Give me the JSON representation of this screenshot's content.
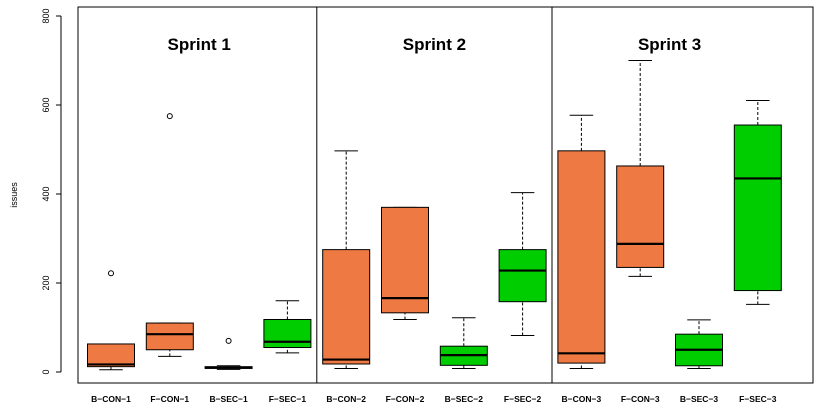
{
  "chart_data": {
    "type": "boxplot",
    "ylabel": "issues",
    "ylim": [
      0,
      800
    ],
    "yticks": [
      0,
      200,
      400,
      600,
      800
    ],
    "grid": false,
    "legend": "none",
    "colors": {
      "CON": "#EE7942",
      "SEC": "#00CD00"
    },
    "panels": [
      {
        "title": "Sprint 1",
        "boxes": [
          {
            "label": "B−CON−1",
            "group": "CON",
            "min": 5,
            "q1": 12,
            "median": 17,
            "q3": 63,
            "max": 63,
            "outliers": [
              222
            ]
          },
          {
            "label": "F−CON−1",
            "group": "CON",
            "min": 35,
            "q1": 50,
            "median": 85,
            "q3": 110,
            "max": 110,
            "outliers": [
              575
            ]
          },
          {
            "label": "B−SEC−1",
            "group": "SEC",
            "min": 6,
            "q1": 8,
            "median": 10,
            "q3": 12,
            "max": 14,
            "outliers": [
              70
            ]
          },
          {
            "label": "F−SEC−1",
            "group": "SEC",
            "min": 43,
            "q1": 55,
            "median": 68,
            "q3": 118,
            "max": 160,
            "outliers": []
          }
        ]
      },
      {
        "title": "Sprint 2",
        "boxes": [
          {
            "label": "B−CON−2",
            "group": "CON",
            "min": 8,
            "q1": 18,
            "median": 28,
            "q3": 275,
            "max": 497,
            "outliers": []
          },
          {
            "label": "F−CON−2",
            "group": "CON",
            "min": 118,
            "q1": 133,
            "median": 166,
            "q3": 370,
            "max": 370,
            "outliers": []
          },
          {
            "label": "B−SEC−2",
            "group": "SEC",
            "min": 8,
            "q1": 15,
            "median": 38,
            "q3": 58,
            "max": 122,
            "outliers": []
          },
          {
            "label": "F−SEC−2",
            "group": "SEC",
            "min": 82,
            "q1": 158,
            "median": 228,
            "q3": 275,
            "max": 403,
            "outliers": []
          }
        ]
      },
      {
        "title": "Sprint 3",
        "boxes": [
          {
            "label": "B−CON−3",
            "group": "CON",
            "min": 8,
            "q1": 20,
            "median": 42,
            "q3": 497,
            "max": 577,
            "outliers": []
          },
          {
            "label": "F−CON−3",
            "group": "CON",
            "min": 215,
            "q1": 235,
            "median": 288,
            "q3": 463,
            "max": 700,
            "outliers": []
          },
          {
            "label": "B−SEC−3",
            "group": "SEC",
            "min": 8,
            "q1": 14,
            "median": 50,
            "q3": 85,
            "max": 117,
            "outliers": []
          },
          {
            "label": "F−SEC−3",
            "group": "SEC",
            "min": 152,
            "q1": 183,
            "median": 435,
            "q3": 555,
            "max": 610,
            "outliers": []
          }
        ]
      }
    ]
  }
}
